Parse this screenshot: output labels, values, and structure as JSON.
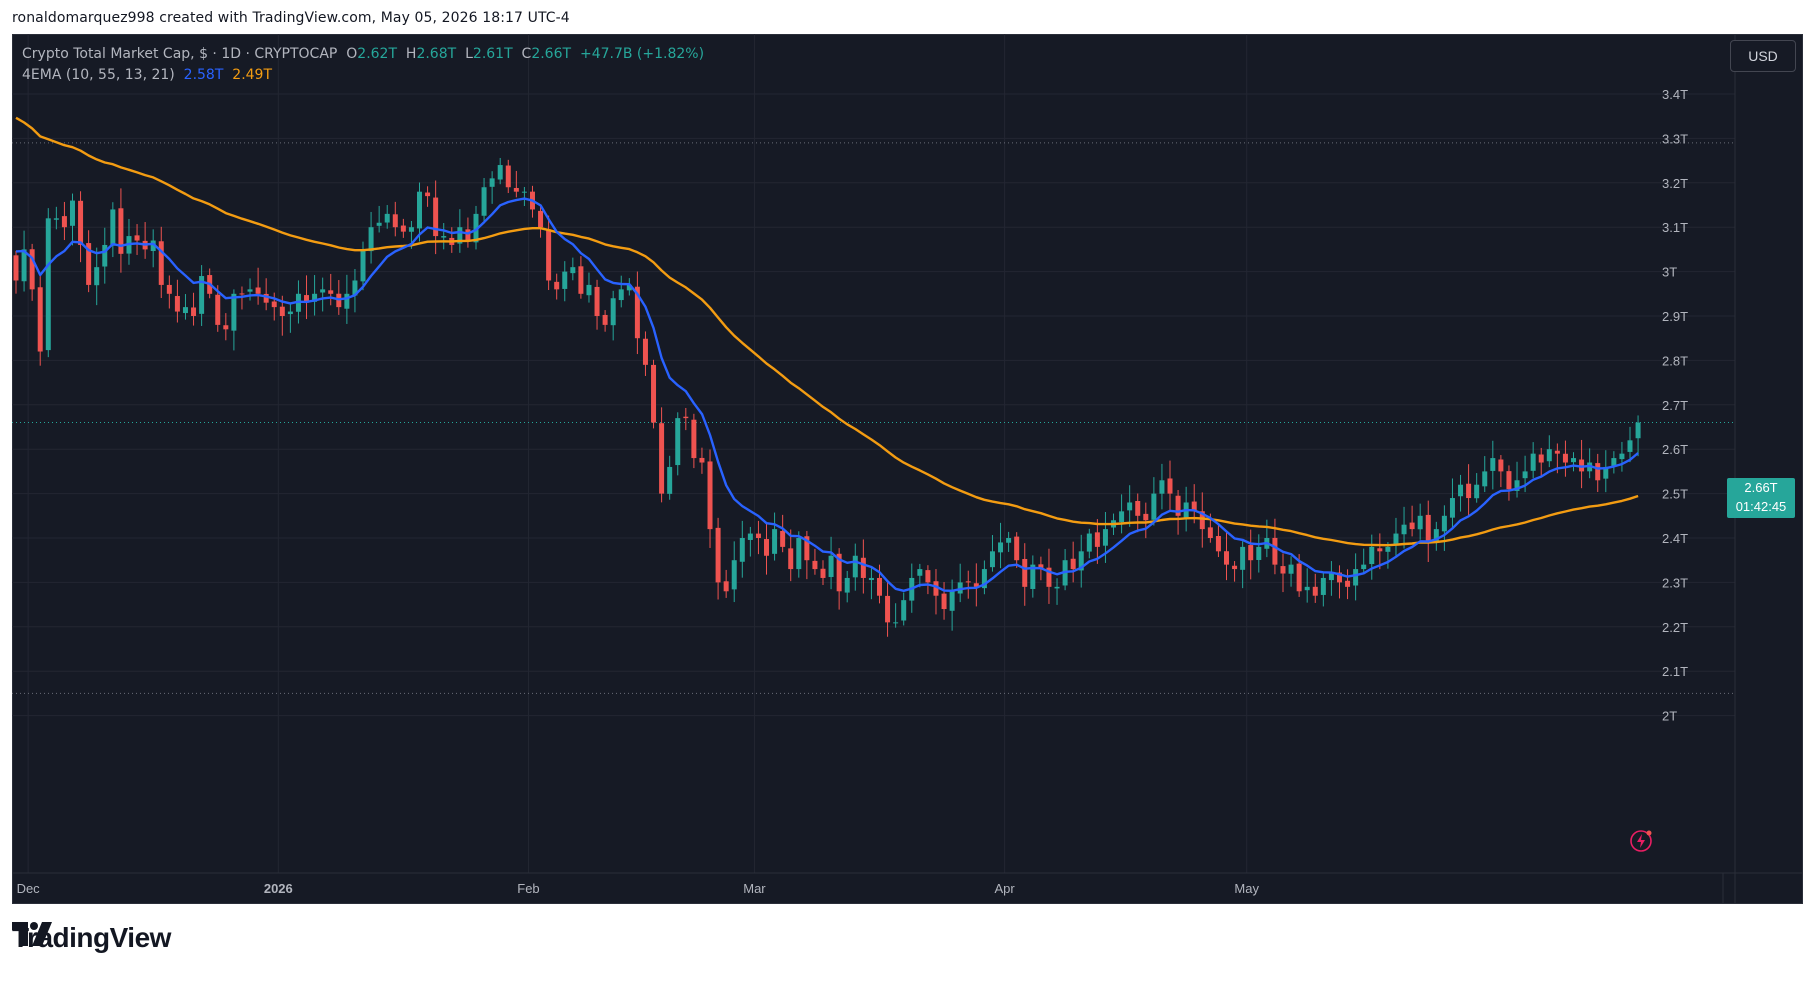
{
  "header": {
    "attribution": "ronaldomarquez998 created with TradingView.com, May 05, 2026 18:17 UTC-4"
  },
  "legend": {
    "symbol": "Crypto Total Market Cap, $ · 1D · CRYPTOCAP",
    "o_label": "O",
    "o_value": "2.62T",
    "h_label": "H",
    "h_value": "2.68T",
    "l_label": "L",
    "l_value": "2.61T",
    "c_label": "C",
    "c_value": "2.66T",
    "change": "+47.7B (+1.82%)",
    "indicator": "4EMA (10, 55, 13, 21)",
    "ema_fast_value": "2.58T",
    "ema_slow_value": "2.49T"
  },
  "currency_button": "USD",
  "price_tag": {
    "price": "2.66T",
    "countdown": "01:42:45"
  },
  "brand": {
    "name": "TradingView"
  },
  "colors": {
    "background": "#161a25",
    "up": "#26a69a",
    "down": "#ef5350",
    "ema_fast": "#2962ff",
    "ema_slow": "#f39c12",
    "grid": "#232632",
    "axis_text": "#b2b5be"
  },
  "chart_data": {
    "type": "candlestick",
    "title": "Crypto Total Market Cap, $ · 1D · CRYPTOCAP",
    "y_unit": "T",
    "y_ticks": [
      2.0,
      2.1,
      2.2,
      2.3,
      2.4,
      2.5,
      2.6,
      2.7,
      2.8,
      2.9,
      3.0,
      3.1,
      3.2,
      3.3,
      3.4
    ],
    "y_tick_labels": [
      "2T",
      "2.1T",
      "2.2T",
      "2.3T",
      "2.4T",
      "2.5T",
      "2.6T",
      "2.7T",
      "2.8T",
      "2.9T",
      "3T",
      "3.1T",
      "3.2T",
      "3.3T",
      "3.4T"
    ],
    "ylim": [
      1.92,
      3.54
    ],
    "x_tick_labels": [
      {
        "label": "Dec",
        "date": "2025-12-01"
      },
      {
        "label": "2026",
        "date": "2026-01-01"
      },
      {
        "label": "Feb",
        "date": "2026-02-01"
      },
      {
        "label": "Mar",
        "date": "2026-03-01"
      },
      {
        "label": "Apr",
        "date": "2026-04-01"
      },
      {
        "label": "May",
        "date": "2026-05-01"
      }
    ],
    "x_range": [
      "2025-11-29",
      "2026-05-20"
    ],
    "reference_levels": [
      3.29,
      2.05
    ],
    "last_price": 2.66,
    "closes": [
      2.98,
      3.05,
      2.96,
      2.82,
      3.12,
      3.12,
      3.1,
      3.16,
      3.06,
      2.97,
      3.01,
      3.06,
      3.14,
      3.04,
      3.08,
      3.07,
      3.05,
      3.07,
      2.97,
      2.95,
      2.91,
      2.92,
      2.9,
      2.99,
      2.95,
      2.88,
      2.87,
      2.95,
      2.95,
      2.96,
      2.95,
      2.93,
      2.92,
      2.9,
      2.91,
      2.95,
      2.93,
      2.95,
      2.96,
      2.95,
      2.92,
      2.95,
      2.98,
      3.05,
      3.1,
      3.11,
      3.13,
      3.1,
      3.09,
      3.1,
      3.18,
      3.17,
      3.08,
      3.08,
      3.06,
      3.1,
      3.07,
      3.13,
      3.19,
      3.21,
      3.24,
      3.19,
      3.18,
      3.18,
      3.14,
      3.1,
      2.98,
      2.96,
      3.0,
      3.01,
      2.95,
      2.97,
      2.9,
      2.88,
      2.94,
      2.96,
      2.97,
      2.85,
      2.79,
      2.66,
      2.5,
      2.56,
      2.67,
      2.67,
      2.58,
      2.57,
      2.42,
      2.3,
      2.28,
      2.35,
      2.4,
      2.41,
      2.4,
      2.36,
      2.42,
      2.38,
      2.33,
      2.4,
      2.35,
      2.33,
      2.31,
      2.36,
      2.28,
      2.31,
      2.36,
      2.31,
      2.31,
      2.27,
      2.21,
      2.21,
      2.26,
      2.31,
      2.33,
      2.3,
      2.27,
      2.24,
      2.28,
      2.3,
      2.3,
      2.29,
      2.33,
      2.37,
      2.39,
      2.4,
      2.35,
      2.29,
      2.34,
      2.33,
      2.29,
      2.29,
      2.35,
      2.33,
      2.37,
      2.41,
      2.38,
      2.42,
      2.44,
      2.46,
      2.48,
      2.45,
      2.44,
      2.5,
      2.53,
      2.5,
      2.45,
      2.48,
      2.46,
      2.42,
      2.4,
      2.37,
      2.34,
      2.33,
      2.38,
      2.35,
      2.38,
      2.4,
      2.34,
      2.32,
      2.34,
      2.28,
      2.29,
      2.27,
      2.31,
      2.32,
      2.3,
      2.29,
      2.33,
      2.34,
      2.38,
      2.37,
      2.38,
      2.41,
      2.43,
      2.42,
      2.45,
      2.39,
      2.42,
      2.45,
      2.49,
      2.52,
      2.49,
      2.52,
      2.55,
      2.58,
      2.55,
      2.51,
      2.53,
      2.55,
      2.59,
      2.57,
      2.6,
      2.59,
      2.57,
      2.58,
      2.55,
      2.57,
      2.53,
      2.56,
      2.58,
      2.59,
      2.62,
      2.66
    ],
    "series": [
      {
        "name": "EMA 10",
        "color": "#2962ff",
        "last_value": 2.58
      },
      {
        "name": "EMA 55",
        "color": "#f39c12",
        "last_value": 2.49
      }
    ],
    "grid": true
  }
}
